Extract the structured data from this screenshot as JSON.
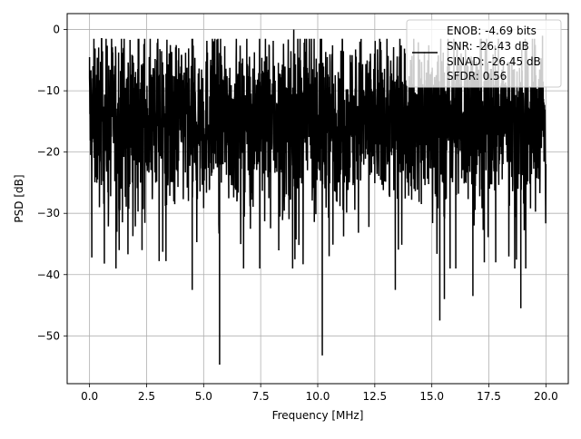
{
  "chart_data": {
    "type": "line",
    "title": "",
    "xlabel": "Frequency [MHz]",
    "ylabel": "PSD [dB]",
    "xlim": [
      -0.98,
      20.98
    ],
    "ylim": [
      -57.8,
      2.6
    ],
    "xticks": [
      0.0,
      2.5,
      5.0,
      7.5,
      10.0,
      12.5,
      15.0,
      17.5,
      20.0
    ],
    "xtick_labels": [
      "0.0",
      "2.5",
      "5.0",
      "7.5",
      "10.0",
      "12.5",
      "15.0",
      "17.5",
      "20.0"
    ],
    "yticks": [
      0,
      -10,
      -20,
      -30,
      -40,
      -50
    ],
    "ytick_labels": [
      "0",
      "−10",
      "−20",
      "−30",
      "−40",
      "−50"
    ],
    "grid": true,
    "legend_position": "top-right",
    "series": [
      {
        "name": "ENOB: -4.69 bits\nSNR: -26.43 dB\nSINAD: -26.45 dB\nSFDR: 0.56",
        "legend_lines": [
          "ENOB: -4.69 bits",
          "SNR: -26.43 dB",
          "SINAD: -26.45 dB",
          "SFDR: 0.56"
        ],
        "color": "#000000",
        "x_start": 0.0,
        "x_end": 20.0,
        "y_mean": -14.5,
        "y_spread": 6.5,
        "notable_points": [
          {
            "x": 0.0,
            "y": -4.5
          },
          {
            "x": 0.1,
            "y": -37.2
          },
          {
            "x": 0.65,
            "y": -38.2
          },
          {
            "x": 1.2,
            "y": -33.0
          },
          {
            "x": 1.3,
            "y": -36.0
          },
          {
            "x": 2.3,
            "y": -36.0
          },
          {
            "x": 3.05,
            "y": -37.8
          },
          {
            "x": 3.35,
            "y": -37.8
          },
          {
            "x": 4.5,
            "y": -42.5
          },
          {
            "x": 5.7,
            "y": -54.7
          },
          {
            "x": 8.95,
            "y": 0.0
          },
          {
            "x": 9.0,
            "y": -37.5
          },
          {
            "x": 10.2,
            "y": -53.2
          },
          {
            "x": 10.5,
            "y": -37.0
          },
          {
            "x": 13.4,
            "y": -42.5
          },
          {
            "x": 15.35,
            "y": -47.5
          },
          {
            "x": 15.55,
            "y": -44.0
          },
          {
            "x": 15.8,
            "y": -39.0
          },
          {
            "x": 16.05,
            "y": -39.0
          },
          {
            "x": 16.8,
            "y": -43.5
          },
          {
            "x": 17.3,
            "y": -38.0
          },
          {
            "x": 17.8,
            "y": -38.0
          },
          {
            "x": 18.9,
            "y": -45.5
          },
          {
            "x": 19.85,
            "y": -1.0
          }
        ]
      }
    ]
  }
}
